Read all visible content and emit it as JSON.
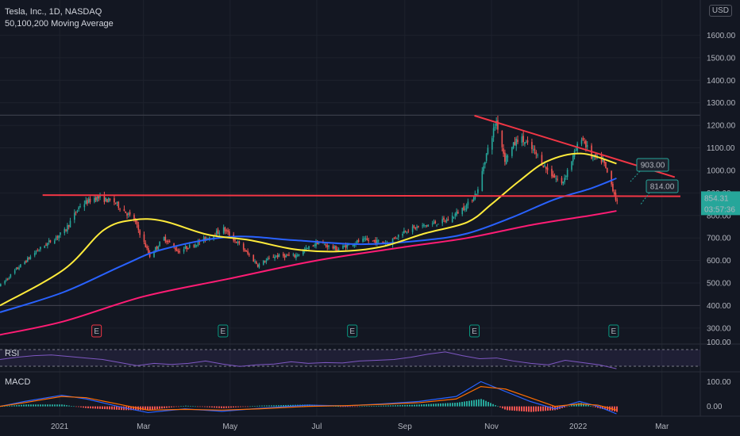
{
  "header": {
    "title": "Tesla, Inc., 1D, NASDAQ",
    "indicator": "50,100,200 Moving Average",
    "currency": "USD"
  },
  "price_box": {
    "value": "854.31",
    "countdown": "03:57:36",
    "color": "#26a69a"
  },
  "annotations": [
    {
      "text": "903.00",
      "price": 903
    },
    {
      "text": "814.00",
      "price": 814
    }
  ],
  "panes": {
    "rsi_label": "RSI",
    "macd_label": "MACD"
  },
  "earnings_markers": [
    {
      "date": "2021-01-27",
      "label": "E",
      "color": "#f23645"
    },
    {
      "date": "2021-04-26",
      "label": "E",
      "color": "#089981"
    },
    {
      "date": "2021-07-26",
      "label": "E",
      "color": "#089981"
    },
    {
      "date": "2021-10-20",
      "label": "E",
      "color": "#089981"
    },
    {
      "date": "2022-01-26",
      "label": "E",
      "color": "#089981"
    }
  ],
  "chart_data": {
    "type": "candlestick",
    "y_ticks": [
      300,
      400,
      500,
      600,
      700,
      800,
      900,
      1000,
      1100,
      1200,
      1300,
      1400,
      1500,
      1600
    ],
    "y_tick_labels": [
      "300.00",
      "400.00",
      "500.00",
      "600.00",
      "700.00",
      "800.00",
      "900.00",
      "1000.00",
      "1100.00",
      "1200.00",
      "1300.00",
      "1400.00",
      "1500.00",
      "1600.00"
    ],
    "x_ticks": [
      "2021-01-01",
      "2021-03-01",
      "2021-05-01",
      "2021-07-01",
      "2021-09-01",
      "2021-11-01",
      "2022-01-01",
      "2022-03-01"
    ],
    "x_tick_labels": [
      "2021",
      "Mar",
      "May",
      "Jul",
      "Sep",
      "Nov",
      "2022",
      "Mar"
    ],
    "x_range": [
      "2020-11-20",
      "2022-03-28"
    ],
    "ylim": [
      260,
      1700
    ],
    "price_points": [
      [
        "2020-11-20",
        490
      ],
      [
        "2020-12-01",
        560
      ],
      [
        "2020-12-15",
        640
      ],
      [
        "2021-01-04",
        730
      ],
      [
        "2021-01-15",
        845
      ],
      [
        "2021-01-26",
        880
      ],
      [
        "2021-02-08",
        860
      ],
      [
        "2021-02-22",
        780
      ],
      [
        "2021-03-05",
        620
      ],
      [
        "2021-03-15",
        700
      ],
      [
        "2021-03-25",
        640
      ],
      [
        "2021-04-08",
        680
      ],
      [
        "2021-04-26",
        740
      ],
      [
        "2021-05-10",
        650
      ],
      [
        "2021-05-20",
        580
      ],
      [
        "2021-06-01",
        620
      ],
      [
        "2021-06-15",
        620
      ],
      [
        "2021-07-01",
        680
      ],
      [
        "2021-07-15",
        650
      ],
      [
        "2021-08-01",
        690
      ],
      [
        "2021-08-20",
        680
      ],
      [
        "2021-09-01",
        735
      ],
      [
        "2021-09-15",
        755
      ],
      [
        "2021-10-01",
        780
      ],
      [
        "2021-10-15",
        850
      ],
      [
        "2021-10-22",
        910
      ],
      [
        "2021-10-27",
        1050
      ],
      [
        "2021-11-04",
        1220
      ],
      [
        "2021-11-10",
        1050
      ],
      [
        "2021-11-20",
        1150
      ],
      [
        "2021-12-01",
        1080
      ],
      [
        "2021-12-10",
        1000
      ],
      [
        "2021-12-20",
        940
      ],
      [
        "2022-01-03",
        1150
      ],
      [
        "2022-01-10",
        1060
      ],
      [
        "2022-01-18",
        1040
      ],
      [
        "2022-01-25",
        920
      ],
      [
        "2022-01-28",
        854
      ]
    ],
    "ma50": [
      [
        "2020-11-20",
        400
      ],
      [
        "2021-01-04",
        560
      ],
      [
        "2021-02-01",
        735
      ],
      [
        "2021-02-22",
        780
      ],
      [
        "2021-03-15",
        775
      ],
      [
        "2021-04-15",
        715
      ],
      [
        "2021-05-15",
        690
      ],
      [
        "2021-06-15",
        650
      ],
      [
        "2021-07-15",
        640
      ],
      [
        "2021-08-15",
        660
      ],
      [
        "2021-09-15",
        720
      ],
      [
        "2021-10-15",
        770
      ],
      [
        "2021-11-01",
        850
      ],
      [
        "2021-11-20",
        950
      ],
      [
        "2021-12-10",
        1040
      ],
      [
        "2022-01-03",
        1075
      ],
      [
        "2022-01-28",
        1030
      ]
    ],
    "ma100": [
      [
        "2020-11-20",
        370
      ],
      [
        "2021-01-04",
        460
      ],
      [
        "2021-02-15",
        580
      ],
      [
        "2021-03-15",
        650
      ],
      [
        "2021-05-01",
        705
      ],
      [
        "2021-06-15",
        690
      ],
      [
        "2021-08-01",
        672
      ],
      [
        "2021-09-15",
        690
      ],
      [
        "2021-10-15",
        720
      ],
      [
        "2021-11-15",
        790
      ],
      [
        "2021-12-15",
        870
      ],
      [
        "2022-01-10",
        920
      ],
      [
        "2022-01-28",
        965
      ]
    ],
    "ma200": [
      [
        "2020-11-20",
        270
      ],
      [
        "2021-01-04",
        330
      ],
      [
        "2021-03-01",
        440
      ],
      [
        "2021-05-01",
        520
      ],
      [
        "2021-07-01",
        600
      ],
      [
        "2021-09-01",
        660
      ],
      [
        "2021-10-15",
        700
      ],
      [
        "2021-12-01",
        760
      ],
      [
        "2022-01-10",
        800
      ],
      [
        "2022-01-28",
        820
      ]
    ],
    "lines": [
      {
        "name": "resistance",
        "color": "#f23645",
        "from": [
          "2020-12-20",
          890
        ],
        "to": [
          "2022-03-14",
          885
        ]
      },
      {
        "name": "downtrend",
        "color": "#f23645",
        "from": [
          "2021-10-20",
          1243
        ],
        "to": [
          "2022-03-10",
          970
        ]
      }
    ],
    "hline": 1245,
    "hline2": 400,
    "rsi": {
      "ylim": [
        0,
        100
      ],
      "tick": 100,
      "tick_label": "100.00",
      "values": [
        60,
        66,
        70,
        72,
        68,
        64,
        60,
        52,
        44,
        50,
        47,
        50,
        56,
        48,
        42,
        46,
        48,
        54,
        50,
        52,
        51,
        56,
        58,
        60,
        66,
        74,
        80,
        70,
        62,
        64,
        56,
        50,
        46,
        58,
        52,
        46,
        36
      ]
    },
    "macd": {
      "ylim": [
        -30,
        130
      ],
      "ticks": [
        0,
        100
      ],
      "tick_labels": [
        "0.00",
        "100.00"
      ],
      "macd_line": [
        [
          0,
          0
        ],
        [
          0.04,
          20
        ],
        [
          0.1,
          45
        ],
        [
          0.14,
          30
        ],
        [
          0.2,
          -5
        ],
        [
          0.24,
          -25
        ],
        [
          0.3,
          -10
        ],
        [
          0.36,
          -20
        ],
        [
          0.42,
          -8
        ],
        [
          0.5,
          5
        ],
        [
          0.56,
          2
        ],
        [
          0.62,
          10
        ],
        [
          0.68,
          20
        ],
        [
          0.74,
          40
        ],
        [
          0.78,
          100
        ],
        [
          0.82,
          60
        ],
        [
          0.86,
          20
        ],
        [
          0.9,
          -10
        ],
        [
          0.94,
          20
        ],
        [
          0.97,
          0
        ],
        [
          1,
          -30
        ]
      ],
      "signal_line": [
        [
          0,
          0
        ],
        [
          0.04,
          15
        ],
        [
          0.1,
          40
        ],
        [
          0.14,
          35
        ],
        [
          0.2,
          5
        ],
        [
          0.24,
          -15
        ],
        [
          0.3,
          -12
        ],
        [
          0.36,
          -15
        ],
        [
          0.42,
          -10
        ],
        [
          0.5,
          0
        ],
        [
          0.56,
          3
        ],
        [
          0.62,
          8
        ],
        [
          0.68,
          15
        ],
        [
          0.74,
          30
        ],
        [
          0.78,
          80
        ],
        [
          0.82,
          70
        ],
        [
          0.86,
          35
        ],
        [
          0.9,
          0
        ],
        [
          0.94,
          10
        ],
        [
          0.97,
          5
        ],
        [
          1,
          -15
        ]
      ]
    },
    "colors": {
      "up": "#26a69a",
      "down": "#ef5350",
      "ma50": "#ffeb3b",
      "ma100": "#2962ff",
      "ma200": "#ff1c74",
      "grid": "#1e222d"
    }
  }
}
